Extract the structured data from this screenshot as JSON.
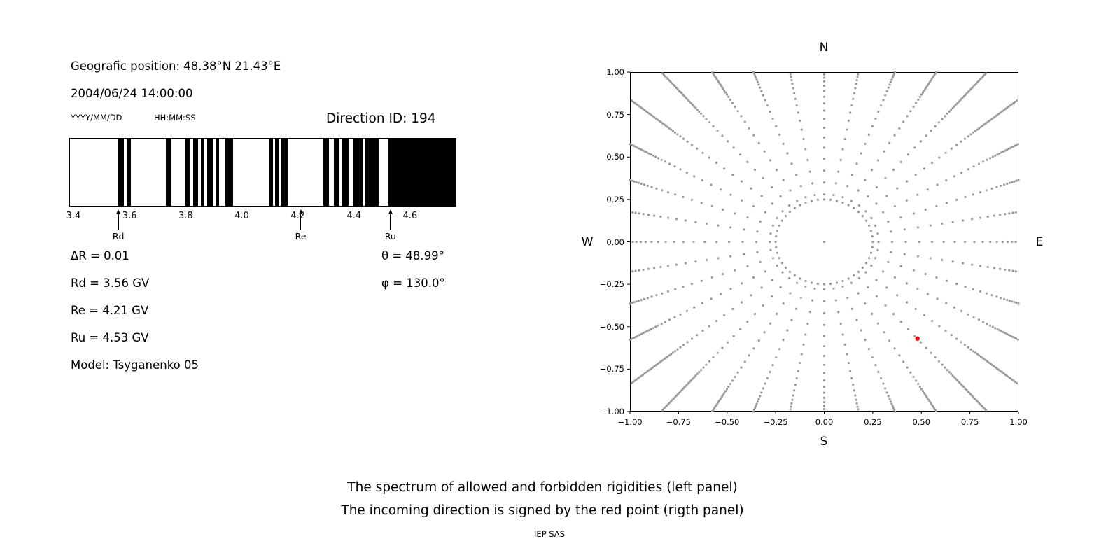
{
  "left_panel": {
    "geo_position": "Geografic position: 48.38°N 21.43°E",
    "datetime": "2004/06/24 14:00:00",
    "date_format": "YYYY/MM/DD",
    "time_format": "HH:MM:SS",
    "direction_id": "Direction ID: 194",
    "info": {
      "delta_r": "ΔR = 0.01",
      "rd": "Rd = 3.56 GV",
      "re": "Re = 4.21 GV",
      "ru": "Ru = 4.53 GV",
      "model": "Model: Tsyganenko 05",
      "theta": "θ = 48.99°",
      "phi": "φ = 130.0°"
    }
  },
  "captions": {
    "line1": "The spectrum of allowed and forbidden rigidities (left panel)",
    "line2": "The incoming direction is signed by the red point (rigth panel)",
    "credit": "IEP SAS"
  },
  "chart_data": [
    {
      "type": "bar",
      "description": "Spectrum of allowed (white) and forbidden (black) rigidities in GV",
      "x_range": [
        3.385,
        4.765
      ],
      "x_ticks": [
        3.4,
        3.6,
        3.8,
        4.0,
        4.2,
        4.4,
        4.6
      ],
      "x_tick_labels": [
        "3.4",
        "3.6",
        "3.8",
        "4.0",
        "4.2",
        "4.4",
        "4.6"
      ],
      "bar_color": "#000000",
      "forbidden_bands": [
        [
          3.557,
          3.577
        ],
        [
          3.587,
          3.604
        ],
        [
          3.729,
          3.749
        ],
        [
          3.798,
          3.816
        ],
        [
          3.826,
          3.843
        ],
        [
          3.853,
          3.866
        ],
        [
          3.876,
          3.895
        ],
        [
          3.905,
          3.918
        ],
        [
          3.94,
          3.968
        ],
        [
          4.097,
          4.112
        ],
        [
          4.119,
          4.132
        ],
        [
          4.139,
          4.164
        ],
        [
          4.291,
          4.311
        ],
        [
          4.328,
          4.348
        ],
        [
          4.358,
          4.383
        ],
        [
          4.398,
          4.434
        ],
        [
          4.44,
          4.49
        ],
        [
          4.525,
          4.765
        ]
      ],
      "markers": [
        {
          "label": "Rd",
          "value": 3.56
        },
        {
          "label": "Re",
          "value": 4.21
        },
        {
          "label": "Ru",
          "value": 4.53
        }
      ]
    },
    {
      "type": "scatter",
      "description": "Incoming direction map: radial spokes of gray dots, inner dotted ring, red point marks incoming direction",
      "xlim": [
        -1,
        1
      ],
      "ylim": [
        -1,
        1
      ],
      "x_ticks": [
        -1,
        -0.75,
        -0.5,
        -0.25,
        0,
        0.25,
        0.5,
        0.75,
        1
      ],
      "x_tick_labels": [
        "−1.00",
        "−0.75",
        "−0.50",
        "−0.25",
        "0.00",
        "0.25",
        "0.50",
        "0.75",
        "1.00"
      ],
      "y_ticks": [
        1,
        0.75,
        0.5,
        0.25,
        0,
        -0.25,
        -0.5,
        -0.75,
        -1
      ],
      "y_tick_labels": [
        "1.00",
        "0.75",
        "0.50",
        "0.25",
        "0.00",
        "−0.25",
        "−0.50",
        "−0.75",
        "−1.00"
      ],
      "compass": {
        "north": "N",
        "south": "S",
        "east": "E",
        "west": "W"
      },
      "dot_color": "#9a9a9a",
      "center_dot": true,
      "inner_ring": {
        "radius": 0.25,
        "count": 48
      },
      "spokes": {
        "angle_start_deg": 0,
        "angle_step_deg": 10,
        "count": 36,
        "radii": [
          0.28,
          0.35,
          0.42,
          0.49,
          0.555,
          0.615,
          0.672,
          0.725,
          0.773,
          0.816,
          0.855,
          0.889,
          0.919,
          0.945,
          0.967,
          0.986,
          1.002,
          1.016,
          1.029,
          1.041,
          1.053,
          1.064,
          1.075,
          1.086,
          1.097,
          1.108,
          1.119,
          1.13,
          1.141,
          1.152,
          1.163,
          1.174,
          1.185,
          1.196,
          1.207,
          1.218,
          1.229,
          1.24,
          1.251,
          1.262,
          1.273,
          1.284,
          1.295,
          1.306,
          1.317,
          1.328,
          1.339,
          1.35,
          1.361,
          1.372,
          1.383,
          1.394,
          1.405
        ]
      },
      "red_point": {
        "x": 0.48,
        "y": -0.57,
        "color": "#ff0000"
      }
    }
  ]
}
